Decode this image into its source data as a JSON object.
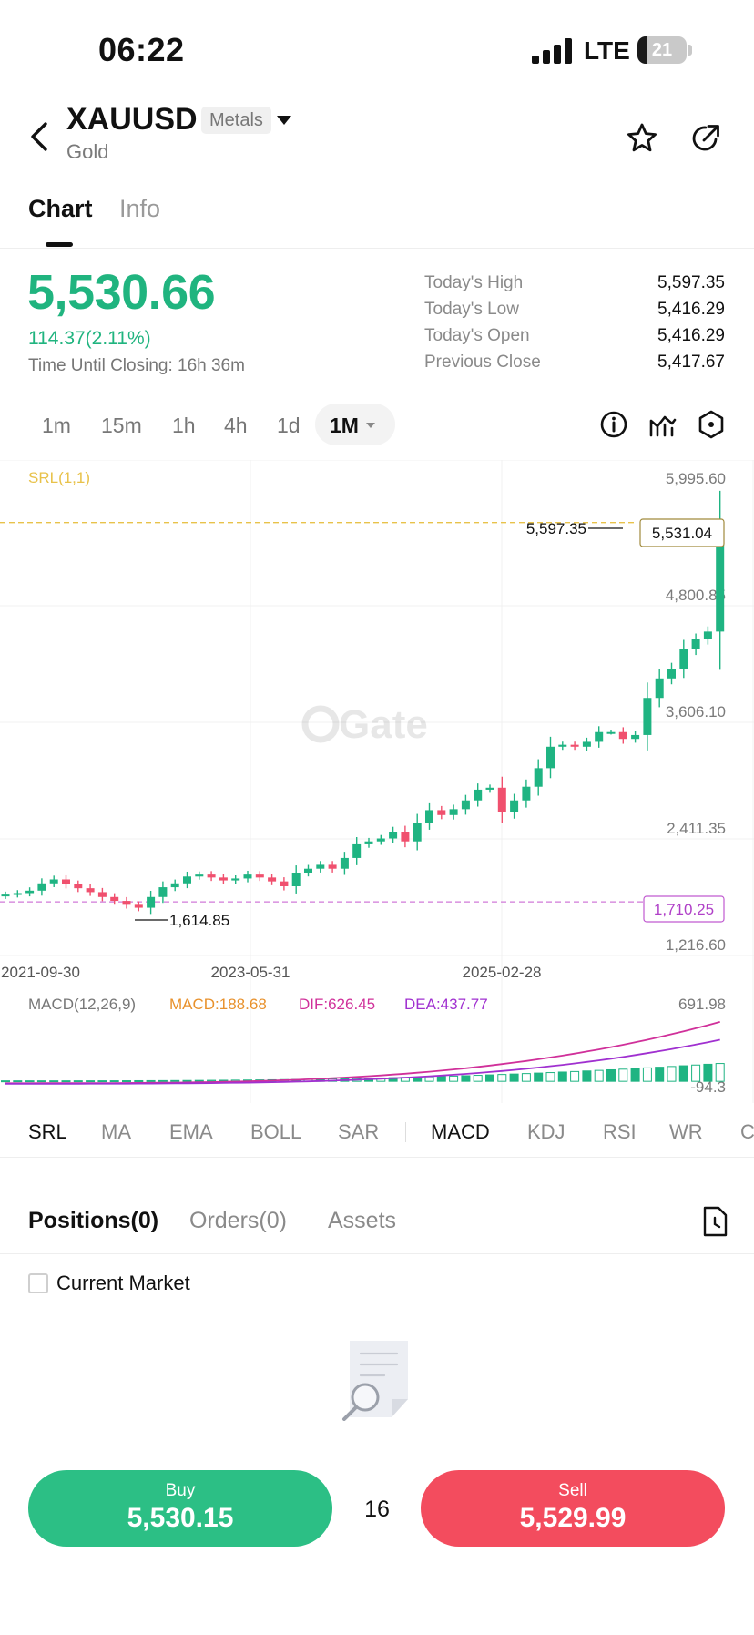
{
  "status_bar": {
    "time": "06:22",
    "network": "LTE",
    "battery": "21",
    "battery_level": 0.21
  },
  "header": {
    "symbol": "XAUUSD",
    "category_badge": "Metals",
    "name": "Gold"
  },
  "tabs": [
    {
      "label": "Chart",
      "active": true
    },
    {
      "label": "Info",
      "active": false
    }
  ],
  "quote": {
    "price": "5,530.66",
    "change": "114.37(2.11%)",
    "closing": "Time Until Closing: 16h 36m",
    "stats": [
      {
        "label": "Today's High",
        "value": "5,597.35"
      },
      {
        "label": "Today's Low",
        "value": "5,416.29"
      },
      {
        "label": "Today's Open",
        "value": "5,416.29"
      },
      {
        "label": "Previous Close",
        "value": "5,417.67"
      }
    ]
  },
  "intervals": {
    "items": [
      "1m",
      "15m",
      "1h",
      "4h",
      "1d"
    ],
    "active": "1M"
  },
  "chart": {
    "watermark": "Gate",
    "srl_label": "SRL(1,1)",
    "price_axis": [
      "5,995.60",
      "4,800.85",
      "3,606.10",
      "2,411.35",
      "1,216.60"
    ],
    "date_axis": [
      "2021-09-30",
      "2023-05-31",
      "2025-02-28"
    ],
    "high_marker": "5,597.35",
    "low_marker": "1,614.85",
    "current_tag": "5,531.04",
    "srl_tag": "1,710.25",
    "macd": {
      "label": "MACD(12,26,9)",
      "macd": "MACD:188.68",
      "dif": "DIF:626.45",
      "dea": "DEA:437.77",
      "axis_max": "691.98",
      "axis_min": "-94.3"
    },
    "colors": {
      "up": "#1fb482",
      "down": "#f0506e",
      "srl": "#e8c24a",
      "dif": "#d0309a",
      "dea": "#a030d0",
      "macd_hist": "#1fb482"
    }
  },
  "chart_data": {
    "type": "candlestick",
    "title": "XAUUSD 1M",
    "xlabel": "",
    "ylabel": "",
    "ylim": [
      1216.6,
      5995.6
    ],
    "x_ticks": [
      "2021-09-30",
      "2023-05-31",
      "2025-02-28"
    ],
    "y_ticks": [
      5995.6,
      4800.85,
      3606.1,
      2411.35,
      1216.6
    ],
    "series": [
      {
        "name": "close",
        "values": [
          1785,
          1800,
          1825,
          1900,
          1940,
          1890,
          1850,
          1810,
          1760,
          1720,
          1680,
          1650,
          1760,
          1860,
          1900,
          1970,
          1990,
          1960,
          1930,
          1950,
          1990,
          1960,
          1920,
          1870,
          2010,
          2050,
          2090,
          2050,
          2160,
          2300,
          2330,
          2360,
          2430,
          2330,
          2520,
          2650,
          2600,
          2660,
          2750,
          2860,
          2880,
          2630,
          2750,
          2890,
          3080,
          3300,
          3320,
          3300,
          3350,
          3450,
          3450,
          3380,
          3420,
          3800,
          4000,
          4100,
          4300,
          4400,
          4480,
          5530
        ]
      }
    ],
    "annotations": {
      "high": 5597.35,
      "low": 1614.85,
      "last": 5531.04,
      "srl": 1710.25
    },
    "macd": {
      "macd": 188.68,
      "dif": 626.45,
      "dea": 437.77,
      "range": [
        -94.3,
        691.98
      ]
    }
  },
  "indicators": {
    "main": [
      "SRL",
      "MA",
      "EMA",
      "BOLL",
      "SAR"
    ],
    "sub": [
      "MACD",
      "KDJ",
      "RSI",
      "WR",
      "C"
    ],
    "active_main": "SRL",
    "active_sub": "MACD"
  },
  "positions": {
    "tabs": [
      "Positions(0)",
      "Orders(0)",
      "Assets"
    ],
    "checkbox_label": "Current Market"
  },
  "trade": {
    "buy_label": "Buy",
    "buy_price": "5,530.15",
    "spread": "16",
    "sell_label": "Sell",
    "sell_price": "5,529.99"
  }
}
